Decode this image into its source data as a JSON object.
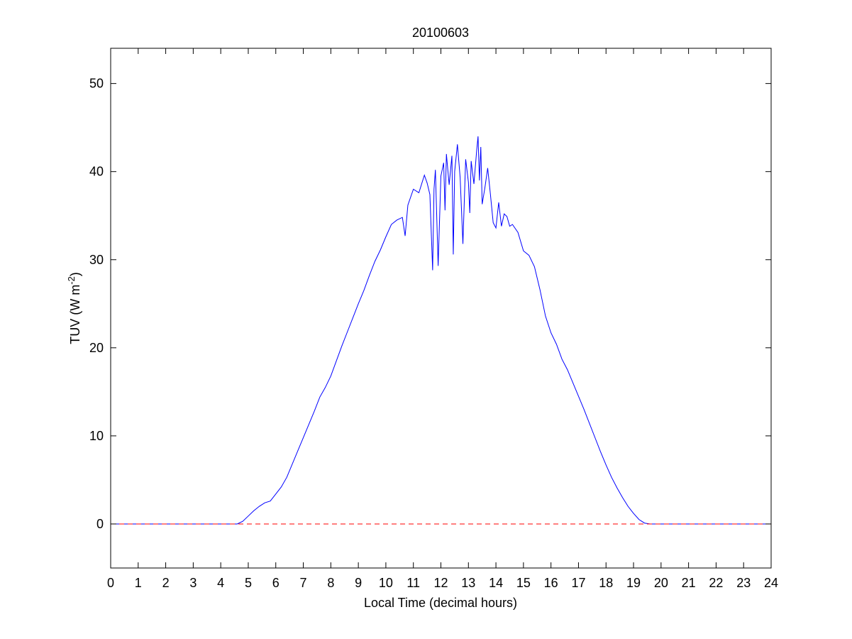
{
  "chart_data": {
    "type": "line",
    "title": "20100603",
    "xlabel": "Local Time (decimal hours)",
    "ylabel": "TUV (W m",
    "ylabel_sup": "-2",
    "ylabel_close": ")",
    "xlim": [
      0,
      24
    ],
    "ylim": [
      -5,
      54
    ],
    "x_ticks": [
      0,
      1,
      2,
      3,
      4,
      5,
      6,
      7,
      8,
      9,
      10,
      11,
      12,
      13,
      14,
      15,
      16,
      17,
      18,
      19,
      20,
      21,
      22,
      23,
      24
    ],
    "y_ticks": [
      0,
      10,
      20,
      30,
      40,
      50
    ],
    "grid": false,
    "legend": "none",
    "series": [
      {
        "color": "#0000ff",
        "style": "solid",
        "x": [
          0,
          4.6,
          4.8,
          5.0,
          5.2,
          5.4,
          5.6,
          5.8,
          6.0,
          6.2,
          6.4,
          6.6,
          6.8,
          7.0,
          7.2,
          7.4,
          7.6,
          7.8,
          8.0,
          8.2,
          8.4,
          8.6,
          8.8,
          9.0,
          9.2,
          9.4,
          9.6,
          9.8,
          10.0,
          10.2,
          10.4,
          10.6,
          10.7,
          10.8,
          11.0,
          11.2,
          11.4,
          11.5,
          11.6,
          11.7,
          11.75,
          11.8,
          11.9,
          12.0,
          12.1,
          12.15,
          12.2,
          12.3,
          12.4,
          12.45,
          12.5,
          12.6,
          12.7,
          12.8,
          12.9,
          13.0,
          13.05,
          13.1,
          13.2,
          13.3,
          13.35,
          13.4,
          13.45,
          13.5,
          13.6,
          13.7,
          13.8,
          13.9,
          14.0,
          14.1,
          14.2,
          14.3,
          14.4,
          14.5,
          14.6,
          14.8,
          15.0,
          15.2,
          15.4,
          15.6,
          15.8,
          16.0,
          16.2,
          16.4,
          16.6,
          16.8,
          17.0,
          17.2,
          17.4,
          17.6,
          17.8,
          18.0,
          18.2,
          18.4,
          18.6,
          18.8,
          19.0,
          19.2,
          19.4,
          19.6,
          19.8,
          20.0,
          24
        ],
        "y": [
          0,
          0,
          0.3,
          0.9,
          1.5,
          2.0,
          2.4,
          2.6,
          3.4,
          4.2,
          5.3,
          6.8,
          8.3,
          9.8,
          11.3,
          12.8,
          14.4,
          15.5,
          16.8,
          18.5,
          20.2,
          21.8,
          23.4,
          25.0,
          26.5,
          28.2,
          29.8,
          31.1,
          32.6,
          34.0,
          34.5,
          34.8,
          32.7,
          36.2,
          38.0,
          37.6,
          39.6,
          38.7,
          37.4,
          28.8,
          38.0,
          40.2,
          29.3,
          39.5,
          41.0,
          35.6,
          42.0,
          38.5,
          41.8,
          30.6,
          40.0,
          43.1,
          39.3,
          31.8,
          41.4,
          38.8,
          35.3,
          41.2,
          38.6,
          42.4,
          44.0,
          39.0,
          42.8,
          36.3,
          38.2,
          40.4,
          37.4,
          34.2,
          33.6,
          36.5,
          33.8,
          35.2,
          34.9,
          33.8,
          34.0,
          33.1,
          31.0,
          30.5,
          29.2,
          26.6,
          23.6,
          21.7,
          20.4,
          18.7,
          17.5,
          16.0,
          14.5,
          13.0,
          11.4,
          9.8,
          8.2,
          6.7,
          5.3,
          4.1,
          3.0,
          2.0,
          1.2,
          0.5,
          0.1,
          0,
          0,
          0,
          0
        ]
      },
      {
        "color": "#ff0000",
        "style": "dashed",
        "x": [
          0,
          24
        ],
        "y": [
          0,
          0
        ]
      }
    ]
  }
}
